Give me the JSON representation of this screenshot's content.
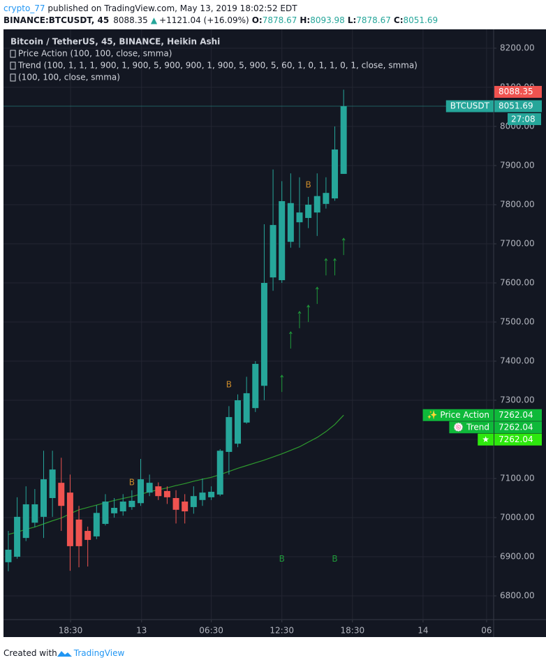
{
  "header": {
    "author": "crypto_77",
    "published": " published on TradingView.com, May 13, 2019 18:02:52 EDT",
    "symbol": "BINANCE:BTCUSDT, 45",
    "price": "8088.35",
    "arrow": "▲",
    "change": "+1121.04 (+16.09%)",
    "ohlc": [
      {
        "key": "O:",
        "value": "7878.67"
      },
      {
        "key": "H:",
        "value": "8093.98"
      },
      {
        "key": "L:",
        "value": "7878.67"
      },
      {
        "key": "C:",
        "value": "8051.69"
      }
    ]
  },
  "chart_data": {
    "type": "candlestick",
    "title": "Bitcoin / TetherUS, 45, BINANCE, Heikin Ashi",
    "indicators": [
      "Price Action (100, 100, close, smma)",
      "Trend (100, 1, 1, 1, 900, 1, 900, 5, 900, 900, 1, 900, 5, 900, 5, 60, 1, 0, 1, 1, 0, 1, close, smma)"
    ],
    "categories": [
      null,
      null,
      null,
      null,
      null,
      null,
      null,
      null,
      null,
      null,
      null,
      null,
      null,
      null,
      null,
      null,
      null,
      null,
      null,
      null,
      null,
      null,
      null,
      null,
      null,
      null,
      null,
      null,
      null,
      null,
      null,
      null,
      null,
      null,
      null,
      null,
      null,
      null,
      null
    ],
    "open": [
      6886,
      6900,
      6948,
      6987,
      7002,
      7050,
      7089,
      7064,
      6995,
      6966,
      6952,
      6984,
      7011,
      7016,
      7027,
      7037,
      7064,
      7080,
      7068,
      7050,
      7041,
      7027,
      7045,
      7052,
      7059,
      7168,
      7189,
      7243,
      7280,
      7337,
      7614,
      7607,
      7705,
      7755,
      7766,
      7780,
      7802,
      7816,
      7878.67
    ],
    "high": [
      6966,
      7052,
      7080,
      7073,
      7171,
      7171,
      7153,
      7110,
      7030,
      6977,
      7032,
      7060,
      7050,
      7060,
      7070,
      7150,
      7110,
      7090,
      7080,
      7070,
      7060,
      7080,
      7100,
      7080,
      7175,
      7285,
      7315,
      7360,
      7400,
      7750,
      7890,
      7860,
      7880,
      7870,
      7820,
      7880,
      7870,
      8000,
      8093.98
    ],
    "low": [
      6863,
      6895,
      6940,
      6975,
      6948,
      7002,
      6966,
      6864,
      6873,
      6875,
      6945,
      6980,
      7000,
      7005,
      7020,
      7030,
      7055,
      7045,
      7035,
      6985,
      6985,
      7010,
      7030,
      7045,
      7055,
      7110,
      7180,
      7240,
      7270,
      7300,
      7580,
      7600,
      7690,
      7690,
      7740,
      7720,
      7790,
      7810,
      7878.67
    ],
    "close": [
      6918,
      7002,
      7034,
      7034,
      7098,
      7123,
      7030,
      6927,
      6927,
      6943,
      7012,
      7041,
      7025,
      7041,
      7043,
      7098,
      7089,
      7055,
      7052,
      7020,
      7016,
      7055,
      7064,
      7066,
      7171,
      7257,
      7300,
      7318,
      7393,
      7600,
      7748,
      7809,
      7804,
      7780,
      7800,
      7822,
      7830,
      7941,
      8051.69
    ],
    "up_color": "#26a69a",
    "down_color": "#ef5350",
    "series": [
      {
        "name": "(100, 100, close, smma)",
        "color": "#2e9a2e",
        "values": [
          6957,
          6963,
          6970,
          6976,
          6984,
          6992,
          6999,
          7010,
          7020,
          7026,
          7032,
          7038,
          7044,
          7049,
          7054,
          7060,
          7066,
          7071,
          7076,
          7082,
          7087,
          7093,
          7098,
          7103,
          7110,
          7118,
          7126,
          7133,
          7140,
          7147,
          7155,
          7163,
          7172,
          7181,
          7193,
          7205,
          7220,
          7238,
          7262.04
        ]
      }
    ],
    "arrows": {
      "color": "#1f9a3a",
      "values": [
        null,
        null,
        null,
        null,
        null,
        null,
        null,
        null,
        null,
        null,
        null,
        null,
        null,
        null,
        null,
        null,
        null,
        null,
        null,
        null,
        null,
        null,
        null,
        null,
        null,
        null,
        null,
        null,
        null,
        null,
        null,
        7364,
        7475,
        7527,
        7543,
        7589,
        7662,
        7662,
        7714
      ]
    },
    "signals": [
      {
        "label": "B",
        "x": 14,
        "y": 7089,
        "color": "#c98a2a"
      },
      {
        "label": "B",
        "x": 25,
        "y": 7339,
        "color": "#c98a2a"
      },
      {
        "label": "B",
        "x": 34,
        "y": 7850,
        "color": "#c98a2a"
      },
      {
        "label": "B",
        "x": 31,
        "y": 6894,
        "color": "#1f9a3a"
      },
      {
        "label": "B",
        "x": 37,
        "y": 6894,
        "color": "#1f9a3a"
      }
    ],
    "xlim": [
      -0.55,
      55
    ],
    "xticks": [
      {
        "value": 7.05,
        "label": "18:30"
      },
      {
        "value": 15.1,
        "label": "13"
      },
      {
        "value": 23.0,
        "label": "06:30"
      },
      {
        "value": 31.0,
        "label": "12:30"
      },
      {
        "value": 39.0,
        "label": "18:30"
      },
      {
        "value": 47.0,
        "label": "14"
      },
      {
        "value": 54.2,
        "label": "06"
      }
    ],
    "ylim": [
      6739.3,
      8248.2
    ],
    "yticks": [
      {
        "value": 6800,
        "label": "6800.00"
      },
      {
        "value": 6900,
        "label": "6900.00"
      },
      {
        "value": 7000,
        "label": "7000.00"
      },
      {
        "value": 7100,
        "label": "7100.00"
      },
      {
        "value": 7200,
        "label": "7200.00"
      },
      {
        "value": 7300,
        "label": "7300.00"
      },
      {
        "value": 7400,
        "label": "7400.00"
      },
      {
        "value": 7500,
        "label": "7500.00"
      },
      {
        "value": 7600,
        "label": "7600.00"
      },
      {
        "value": 7700,
        "label": "7700.00"
      },
      {
        "value": 7800,
        "label": "7800.00"
      },
      {
        "value": 7900,
        "label": "7900.00"
      },
      {
        "value": 8000,
        "label": "8000.00"
      },
      {
        "value": 8100,
        "label": "8100.00"
      },
      {
        "value": 8200,
        "label": "8200.00"
      }
    ],
    "grid": true,
    "price_tags": [
      {
        "value": 8088.35,
        "color": "#ef5350"
      },
      {
        "label": "BTCUSDT",
        "value": 8051.69,
        "color": "#26a69a",
        "countdown": "27:08"
      },
      {
        "label": "✨ Price Action",
        "value": 7262.04,
        "color": "#0fb93a"
      },
      {
        "label": "🍥 Trend",
        "value": 7262.04,
        "color": "#0fb93a"
      },
      {
        "label": "★",
        "value": 7262.04,
        "color": "#2ee80e"
      }
    ]
  },
  "footer": {
    "text": "Created with",
    "brand": "TradingView"
  }
}
